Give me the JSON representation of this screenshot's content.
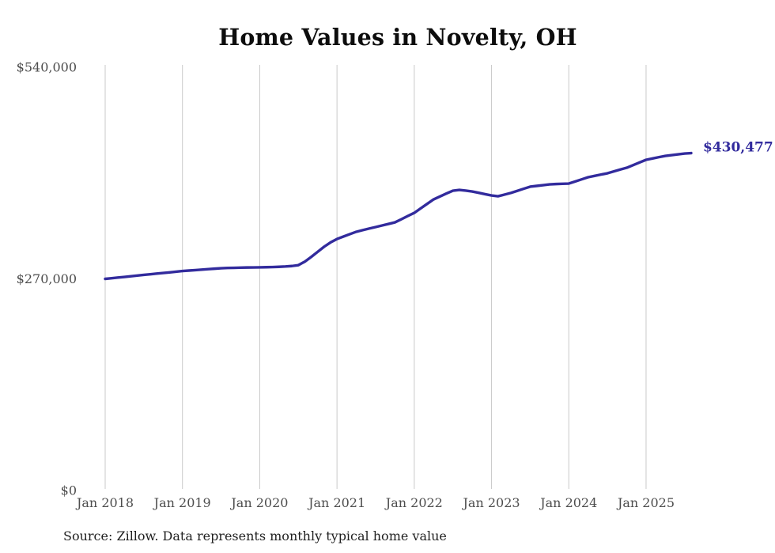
{
  "chart_data": {
    "type": "line",
    "title": "Home Values in Novelty, OH",
    "source_note": "Source: Zillow. Data represents monthly typical home value",
    "xlabel": "",
    "ylabel": "",
    "ylim": [
      0,
      540000
    ],
    "grid": "vertical-only",
    "legend": "none",
    "y_tick_labels": [
      "$540,000",
      "$270,000",
      "$0"
    ],
    "y_tick_values": [
      540000,
      270000,
      0
    ],
    "x_tick_labels": [
      "Jan 2018",
      "Jan 2019",
      "Jan 2020",
      "Jan 2021",
      "Jan 2022",
      "Jan 2023",
      "Jan 2024",
      "Jan 2025"
    ],
    "end_label": "$430,477",
    "end_value": 430477,
    "colors": {
      "line": "#322b9d",
      "end_label": "#322b9d",
      "grid": "#c9c9c9",
      "axis_text": "#4d4d4d",
      "title_text": "#0d0d0d",
      "source_text": "#1f1f1f"
    },
    "series": [
      {
        "name": "Typical home value (monthly)",
        "start_month": "2018-01",
        "end_month": "2025-08",
        "frequency": "monthly",
        "values": [
          270000,
          270800,
          271700,
          272500,
          273400,
          274200,
          275100,
          275900,
          276700,
          277500,
          278300,
          279200,
          280000,
          280600,
          281200,
          281800,
          282400,
          283000,
          283600,
          283900,
          284100,
          284300,
          284500,
          284600,
          284700,
          284900,
          285100,
          285400,
          285800,
          286400,
          287500,
          292000,
          298000,
          304500,
          311000,
          316500,
          320900,
          324000,
          327100,
          330100,
          332200,
          334200,
          336100,
          338100,
          340100,
          342100,
          346100,
          350200,
          354200,
          360000,
          365700,
          371400,
          375200,
          378900,
          382500,
          383500,
          382600,
          381500,
          379800,
          378100,
          376400,
          375400,
          377500,
          379600,
          382300,
          385000,
          387600,
          388600,
          389600,
          390600,
          391000,
          391300,
          391600,
          394300,
          397000,
          399700,
          401400,
          403100,
          404700,
          407100,
          409500,
          411800,
          415200,
          418600,
          421900,
          423600,
          425300,
          426900,
          427900,
          428900,
          429900,
          430477
        ]
      }
    ]
  }
}
